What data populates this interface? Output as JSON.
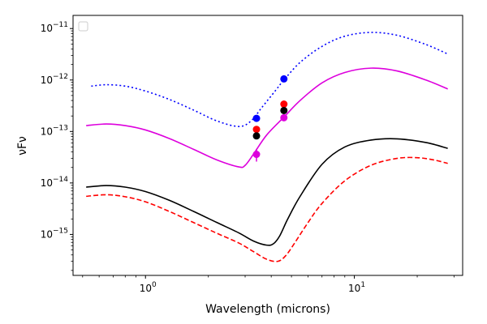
{
  "chart_data": {
    "type": "line",
    "title": "",
    "xlabel": "Wavelength (microns)",
    "ylabel": "νFν",
    "xscale": "log",
    "yscale": "log",
    "xlim": [
      0.45,
      33
    ],
    "ylim": [
      1.6e-16,
      1.8e-11
    ],
    "x_ticks": [
      {
        "value": 1,
        "label": "10",
        "exp": "0"
      },
      {
        "value": 10,
        "label": "10",
        "exp": "1"
      }
    ],
    "y_ticks": [
      {
        "value": 1e-15,
        "label": "10",
        "exp": "−15"
      },
      {
        "value": 1e-14,
        "label": "10",
        "exp": "−14"
      },
      {
        "value": 1e-13,
        "label": "10",
        "exp": "−13"
      },
      {
        "value": 1e-12,
        "label": "10",
        "exp": "−12"
      },
      {
        "value": 1e-11,
        "label": "10",
        "exp": "−11"
      }
    ],
    "grid": false,
    "legend": {
      "placement": "top-left",
      "entries": []
    },
    "series": [
      {
        "color": "#0000ff",
        "linestyle": "dotted",
        "x": [
          0.55,
          0.65,
          0.8,
          1.0,
          1.3,
          1.7,
          2.2,
          2.8,
          3.2,
          3.6,
          4.2,
          4.6,
          5.5,
          7.0,
          9.0,
          12.0,
          16.0,
          22.0,
          28.0
        ],
        "y": [
          7.6e-13,
          8.1e-13,
          7.6e-13,
          6.1e-13,
          4.2e-13,
          2.6e-13,
          1.6e-13,
          1.25e-13,
          1.6e-13,
          2.9e-13,
          6.3e-13,
          1e-12,
          2.2e-12,
          4.5e-12,
          7.1e-12,
          8.4e-12,
          7.4e-12,
          4.9e-12,
          3.2e-12
        ]
      },
      {
        "color": "#dd00dd",
        "linestyle": "solid",
        "x": [
          0.52,
          0.65,
          0.8,
          1.0,
          1.3,
          1.7,
          2.2,
          2.8,
          3.0,
          3.3,
          3.8,
          4.6,
          5.5,
          7.0,
          9.0,
          12.0,
          16.0,
          22.0,
          28.0
        ],
        "y": [
          1.3e-13,
          1.4e-13,
          1.3e-13,
          1.07e-13,
          7.3e-14,
          4.5e-14,
          2.8e-14,
          2.05e-14,
          2.2e-14,
          3.7e-14,
          8.5e-14,
          1.9e-13,
          4e-13,
          8.8e-13,
          1.4e-12,
          1.7e-12,
          1.5e-12,
          1e-12,
          6.7e-13
        ]
      },
      {
        "color": "#000000",
        "linestyle": "solid",
        "x": [
          0.52,
          0.65,
          0.8,
          1.0,
          1.3,
          1.7,
          2.2,
          2.8,
          3.3,
          3.8,
          4.1,
          4.4,
          4.8,
          5.5,
          7.0,
          9.0,
          12.0,
          16.0,
          22.0,
          28.0
        ],
        "y": [
          8.3e-15,
          8.9e-15,
          8.3e-15,
          6.8e-15,
          4.6e-15,
          2.8e-15,
          1.7e-15,
          1.07e-15,
          7.4e-16,
          6.2e-16,
          6.6e-16,
          9.5e-16,
          2e-15,
          5.5e-15,
          2.3e-14,
          5e-14,
          6.8e-14,
          7.2e-14,
          6.1e-14,
          4.7e-14
        ]
      },
      {
        "color": "#ff0000",
        "linestyle": "dashed",
        "x": [
          0.52,
          0.65,
          0.8,
          1.0,
          1.3,
          1.7,
          2.2,
          2.8,
          3.3,
          3.8,
          4.3,
          4.7,
          5.2,
          6.0,
          7.0,
          9.0,
          12.0,
          16.0,
          20.0,
          24.0,
          28.0
        ],
        "y": [
          5.5e-15,
          5.9e-15,
          5.4e-15,
          4.3e-15,
          2.8e-15,
          1.7e-15,
          1.05e-15,
          6.8e-16,
          4.6e-16,
          3.3e-16,
          3e-16,
          3.9e-16,
          7e-16,
          1.7e-15,
          4e-15,
          1.1e-14,
          2.2e-14,
          3e-14,
          3.1e-14,
          2.8e-14,
          2.4e-14
        ]
      }
    ],
    "points": [
      {
        "x": 3.4,
        "y": 1.8e-13,
        "color": "#0000ff"
      },
      {
        "x": 4.6,
        "y": 1.05e-12,
        "color": "#0000ff"
      },
      {
        "x": 3.4,
        "y": 1.1e-13,
        "color": "#ff0000"
      },
      {
        "x": 4.6,
        "y": 3.4e-13,
        "color": "#ff0000"
      },
      {
        "x": 3.4,
        "y": 8.2e-14,
        "color": "#000000"
      },
      {
        "x": 4.6,
        "y": 2.55e-13,
        "color": "#000000"
      },
      {
        "x": 3.4,
        "y": 3.6e-14,
        "color": "#dd00dd",
        "yerr_low": 2.6e-14,
        "yerr_high": 4.6e-14
      },
      {
        "x": 4.6,
        "y": 1.85e-13,
        "color": "#dd00dd"
      }
    ]
  }
}
